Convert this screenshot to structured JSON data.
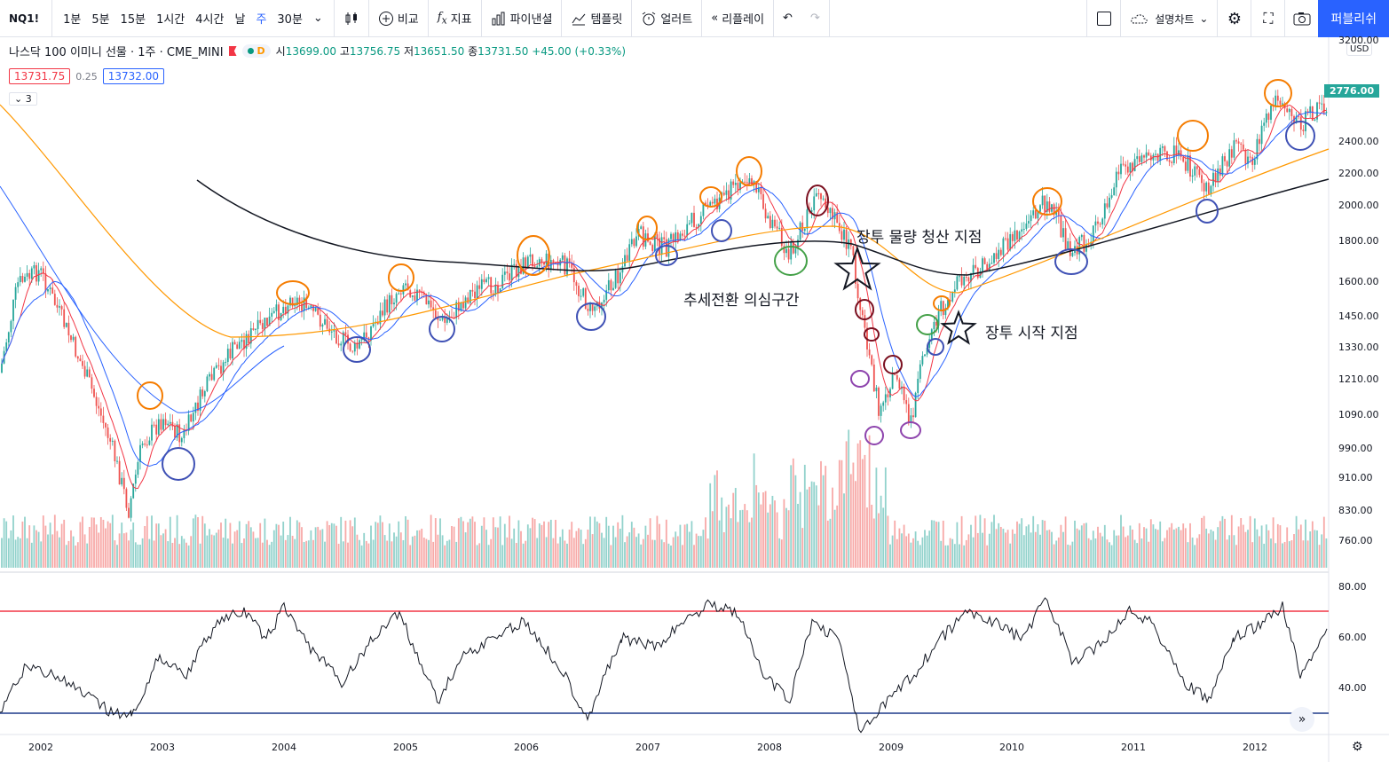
{
  "toolbar": {
    "symbol": "NQ1!",
    "intervals": [
      "1분",
      "5분",
      "15분",
      "1시간",
      "4시간",
      "날",
      "주",
      "30분"
    ],
    "active_interval": "주",
    "compare": "비교",
    "indicators": "지표",
    "financials": "파이낸셜",
    "templates": "템플릿",
    "alert": "얼러트",
    "replay": "리플레이",
    "layout_name": "설명차트",
    "publish": "퍼블리쉬"
  },
  "legend": {
    "name": "나스닥 100 이미니 선물 · 1주 · CME_MINI",
    "badge": "D",
    "open_label": "시",
    "open": "13699.00",
    "high_label": "고",
    "high": "13756.75",
    "low_label": "저",
    "low": "13651.50",
    "close_label": "종",
    "close": "13731.50",
    "change": "+45.00 (+0.33%)",
    "sell": "13731.75",
    "spread": "0.25",
    "buy": "13732.00",
    "collapsed_count": "3"
  },
  "price_axis": {
    "currency": "USD",
    "last_price": "2776.00",
    "labels": [
      "3200.00",
      "2400.00",
      "2200.00",
      "2000.00",
      "1800.00",
      "1600.00",
      "1450.00",
      "1330.00",
      "1210.00",
      "1090.00",
      "990.00",
      "910.00",
      "830.00",
      "760.00"
    ]
  },
  "rsi_axis": {
    "labels": [
      "80.00",
      "60.00",
      "40.00"
    ]
  },
  "time_axis": {
    "labels": [
      "2002",
      "2003",
      "2004",
      "2005",
      "2006",
      "2007",
      "2008",
      "2009",
      "2010",
      "2011",
      "2012"
    ]
  },
  "annotations": {
    "liquidation": "장투 물량 청산 지점",
    "trend_change": "추세전환 의심구간",
    "entry": "장투 시작 지점"
  },
  "colors": {
    "up": "#26a69a",
    "down": "#ef5350",
    "ma_red": "#f23645",
    "ma_blue": "#2962ff",
    "ma_orange": "#ff9800",
    "ma_black": "#131722",
    "rsi_top": "#f23645",
    "rsi_bottom": "#1e3a8a"
  }
}
